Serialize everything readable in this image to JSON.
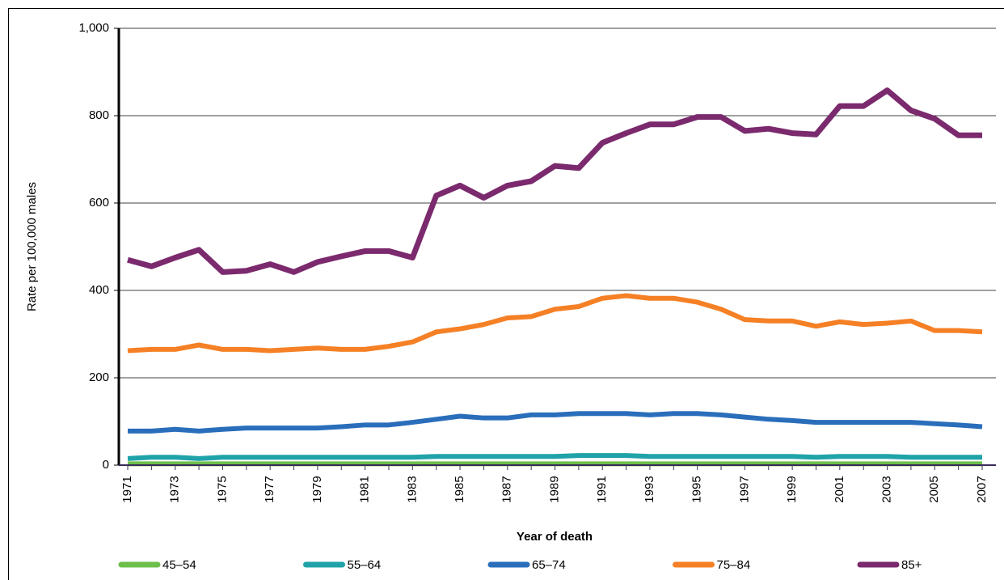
{
  "chart_data": {
    "type": "line",
    "x_label": "Year of death",
    "y_label": "Rate per 100,000 males",
    "categories": [
      "1971",
      null,
      "1973",
      null,
      "1975",
      null,
      "1977",
      null,
      "1979",
      null,
      "1981",
      null,
      "1983",
      null,
      "1985",
      null,
      "1987",
      null,
      "1989",
      null,
      "1991",
      null,
      "1993",
      null,
      "1995",
      null,
      "1997",
      null,
      "1999",
      null,
      "2001",
      null,
      "2003",
      null,
      "2005",
      null,
      "2007"
    ],
    "series": [
      {
        "name": "45–54",
        "color": "#6dbf4b",
        "values": [
          3,
          3,
          3,
          3,
          3,
          3,
          3,
          3,
          3,
          3,
          3,
          3,
          3,
          3,
          3,
          3,
          3,
          3,
          3,
          3,
          3,
          3,
          3,
          3,
          3,
          3,
          3,
          3,
          3,
          3,
          3,
          3,
          3,
          3,
          3,
          3,
          3
        ]
      },
      {
        "name": "55–64",
        "color": "#1fa3a8",
        "values": [
          15,
          18,
          18,
          15,
          18,
          18,
          18,
          18,
          18,
          18,
          18,
          18,
          18,
          20,
          20,
          20,
          20,
          20,
          20,
          22,
          22,
          22,
          20,
          20,
          20,
          20,
          20,
          20,
          20,
          18,
          20,
          20,
          20,
          18,
          18,
          18,
          18
        ]
      },
      {
        "name": "65–74",
        "color": "#2a6ebb",
        "values": [
          78,
          78,
          82,
          78,
          82,
          85,
          85,
          85,
          85,
          88,
          92,
          92,
          98,
          105,
          112,
          108,
          108,
          115,
          115,
          118,
          118,
          118,
          115,
          118,
          118,
          115,
          110,
          105,
          102,
          98,
          98,
          98,
          98,
          98,
          95,
          92,
          88
        ]
      },
      {
        "name": "75–84",
        "color": "#f58025",
        "values": [
          262,
          265,
          265,
          275,
          265,
          265,
          262,
          265,
          268,
          265,
          265,
          272,
          282,
          305,
          312,
          322,
          337,
          340,
          357,
          363,
          382,
          388,
          382,
          382,
          373,
          357,
          333,
          330,
          330,
          318,
          328,
          322,
          325,
          330,
          308,
          308,
          305
        ]
      },
      {
        "name": "85+",
        "color": "#7b2a6e",
        "values": [
          470,
          455,
          475,
          493,
          442,
          445,
          460,
          442,
          465,
          478,
          490,
          490,
          475,
          617,
          640,
          612,
          640,
          650,
          685,
          680,
          738,
          760,
          780,
          780,
          797,
          797,
          765,
          770,
          760,
          757,
          822,
          822,
          858,
          812,
          793,
          755,
          755
        ]
      }
    ],
    "ylim": [
      0,
      1000
    ],
    "yticks": [
      0,
      200,
      400,
      600,
      800,
      {
        "value": 1000,
        "label": "1,000"
      }
    ],
    "grid": true
  }
}
